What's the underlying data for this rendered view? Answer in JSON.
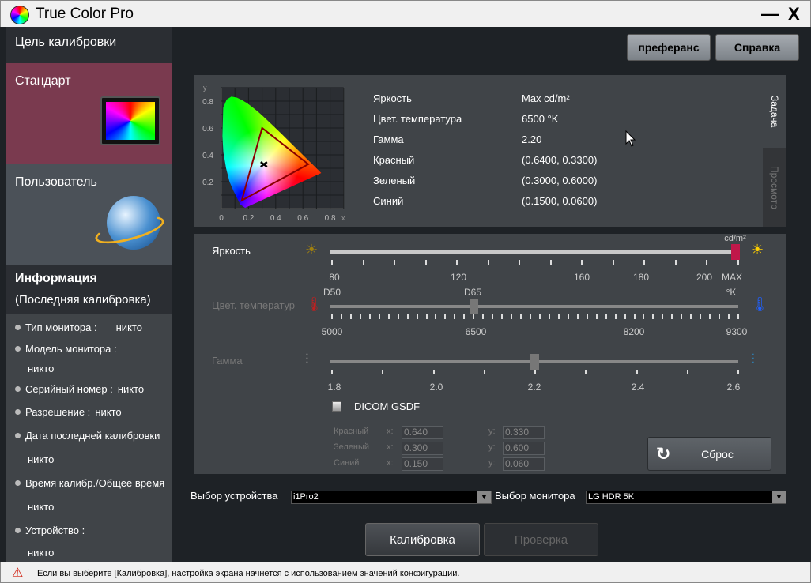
{
  "app": {
    "title": "True Color Pro",
    "minimize": "—",
    "close": "X"
  },
  "sidebar": {
    "header": "Цель калибровки",
    "cards": [
      {
        "label": "Стандарт",
        "icon": "monitor-icon",
        "color": "#7a3a4f"
      },
      {
        "label": "Пользователь",
        "icon": "globe-icon",
        "color": "#4b5158"
      }
    ],
    "info": {
      "title": "Информация",
      "subtitle": "(Последняя калибровка)",
      "items": [
        {
          "label": "Тип монитора :",
          "value": "никто"
        },
        {
          "label": "Модель монитора :",
          "value": "никто"
        },
        {
          "label": "Серийный номер :",
          "value": "никто"
        },
        {
          "label": "Разрешение :",
          "value": "никто"
        },
        {
          "label": "Дата последней калибровки",
          "value": "никто"
        },
        {
          "label": "Время калибр./Общее время",
          "value": "никто"
        },
        {
          "label": "Устройство :",
          "value": "никто"
        }
      ]
    }
  },
  "toolbar": {
    "preferences": "преферанс",
    "help": "Справка"
  },
  "summary": {
    "tabs": [
      {
        "label": "Задача",
        "active": true
      },
      {
        "label": "Просмотр",
        "active": false
      }
    ],
    "rows": [
      {
        "label": "Яркость",
        "value": "Max cd/m²"
      },
      {
        "label": "Цвет. температура",
        "value": "6500 °K"
      },
      {
        "label": "Гамма",
        "value": "2.20"
      },
      {
        "label": "Красный",
        "value": "(0.6400, 0.3300)"
      },
      {
        "label": "Зеленый",
        "value": "(0.3000, 0.6000)"
      },
      {
        "label": "Синий",
        "value": "(0.1500, 0.0600)"
      }
    ]
  },
  "chart_data": {
    "type": "scatter",
    "xlabel": "x",
    "ylabel": "y",
    "xlim": [
      0,
      0.9
    ],
    "ylim": [
      0,
      0.9
    ],
    "x_ticks": [
      "0",
      "0.2",
      "0.4",
      "0.6",
      "0.8"
    ],
    "y_ticks": [
      "0.2",
      "0.4",
      "0.6",
      "0.8"
    ],
    "grid": true,
    "gamut": [
      [
        0.64,
        0.33
      ],
      [
        0.3,
        0.6
      ],
      [
        0.15,
        0.06
      ]
    ],
    "white_point": [
      0.3127,
      0.329
    ],
    "gamut_color": "#8b0000"
  },
  "sliders": {
    "brightness": {
      "label": "Яркость",
      "unit": "cd/m²",
      "ticks": [
        "80",
        "120",
        "160",
        "180",
        "200",
        "MAX"
      ],
      "value": "MAX",
      "fraction": 1.0,
      "handle_color": "#c0184a"
    },
    "temperature": {
      "label": "Цвет. температур",
      "unit": "°K",
      "presets": [
        "D50",
        "D65"
      ],
      "ticks": [
        "5000",
        "6500",
        "8200",
        "9300"
      ],
      "value": 6500
    },
    "gamma": {
      "label": "Гамма",
      "ticks": [
        "1.8",
        "2.0",
        "2.2",
        "2.4",
        "2.6"
      ],
      "value": 2.2
    }
  },
  "dicom": {
    "label": "DICOM GSDF",
    "checked": false
  },
  "primaries": [
    {
      "label": "Красный",
      "x": "0.640",
      "y": "0.330"
    },
    {
      "label": "Зеленый",
      "x": "0.300",
      "y": "0.600"
    },
    {
      "label": "Синий",
      "x": "0.150",
      "y": "0.060"
    }
  ],
  "axis_x": "x:",
  "axis_y": "y:",
  "reset": "Сброс",
  "device": {
    "label": "Выбор устройства",
    "value": "i1Pro2"
  },
  "monitor": {
    "label": "Выбор монитора",
    "value": "LG HDR 5K"
  },
  "actions": {
    "calibrate": "Калибровка",
    "verify": "Проверка"
  },
  "status": "Если вы выберите [Калибровка], настройка экрана начнется с использованием значений конфигурации."
}
